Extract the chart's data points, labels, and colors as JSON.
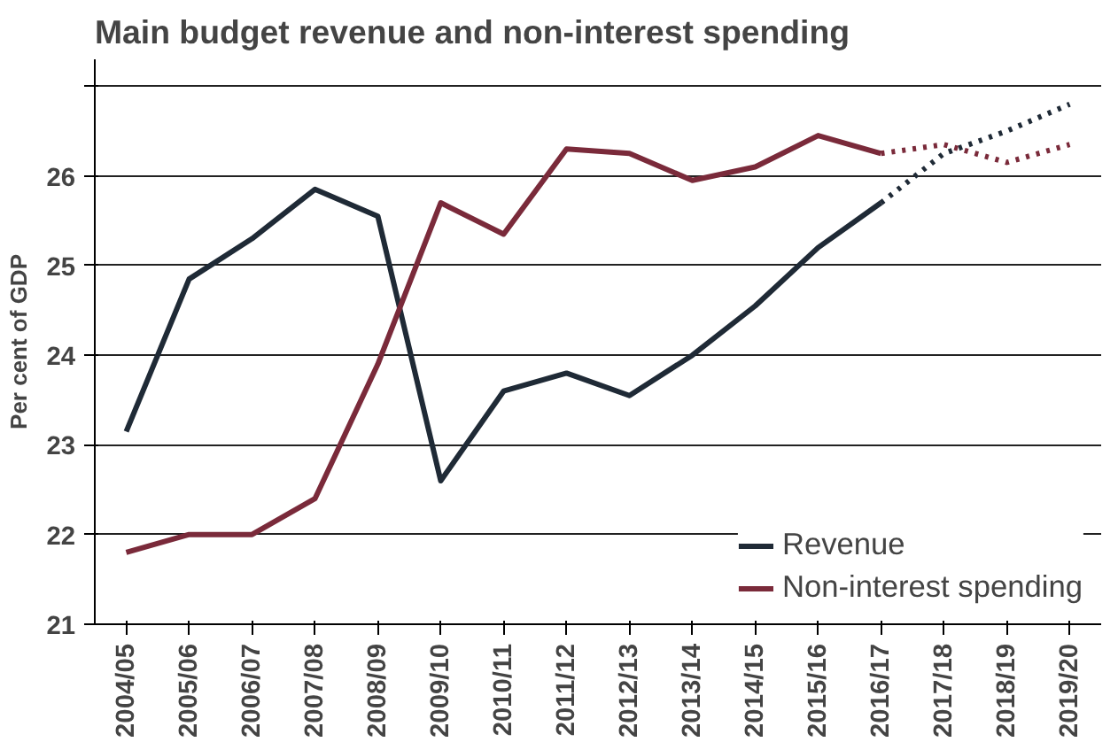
{
  "chart_data": {
    "type": "line",
    "title": "Main budget revenue and non-interest spending",
    "ylabel": "Per cent of GDP",
    "categories": [
      "2004/05",
      "2005/06",
      "2006/07",
      "2007/08",
      "2008/09",
      "2009/10",
      "2010/11",
      "2011/12",
      "2012/13",
      "2013/14",
      "2014/15",
      "2015/16",
      "2016/17",
      "2017/18",
      "2018/19",
      "2019/20"
    ],
    "series": [
      {
        "name": "Revenue",
        "color": "#1f2a36",
        "line_style": "solid",
        "values": [
          23.15,
          24.85,
          25.3,
          25.85,
          25.55,
          22.6,
          23.6,
          23.8,
          23.55,
          24.0,
          24.55,
          25.2,
          25.7,
          null,
          null,
          null
        ]
      },
      {
        "name": "Non-interest spending",
        "color": "#7a2a3a",
        "line_style": "solid",
        "values": [
          21.8,
          22.0,
          22.0,
          22.4,
          23.9,
          25.7,
          25.35,
          26.3,
          26.25,
          25.95,
          26.1,
          26.45,
          26.25,
          null,
          null,
          null
        ]
      },
      {
        "color": "#1f2a36",
        "line_style": "dotted",
        "values": [
          null,
          null,
          null,
          null,
          null,
          null,
          null,
          null,
          null,
          null,
          null,
          null,
          25.7,
          26.25,
          26.5,
          26.8
        ]
      },
      {
        "color": "#7a2a3a",
        "line_style": "dotted",
        "values": [
          null,
          null,
          null,
          null,
          null,
          null,
          null,
          null,
          null,
          null,
          null,
          null,
          26.25,
          26.35,
          26.15,
          26.35
        ]
      }
    ],
    "ylim": [
      21,
      27.3
    ],
    "yticks": [
      21,
      22,
      23,
      24,
      25,
      26,
      {
        "value": 27,
        "label": null
      }
    ],
    "grid": "y",
    "legend": "bottom right"
  }
}
